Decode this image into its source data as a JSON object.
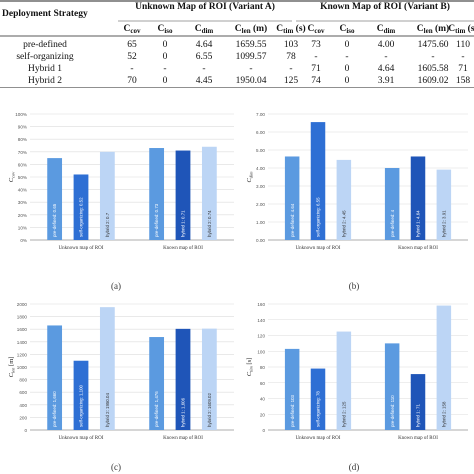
{
  "table": {
    "group_a": "Unknown Map of ROI (Variant A)",
    "group_b": "Known Map of ROI (Variant B)",
    "col0": "Deployment Strategy",
    "sub_headers": [
      "C",
      "C",
      "C",
      "C",
      "C",
      "C",
      "C",
      "C",
      "C",
      "C"
    ],
    "subscripts": [
      "cov",
      "iso",
      "dim",
      "len",
      "tim",
      "cov",
      "iso",
      "dim",
      "len",
      "tim"
    ],
    "units": [
      "",
      "",
      "",
      "(m)",
      "(s)",
      "",
      "",
      "",
      "(m)",
      "(s)"
    ],
    "rows": [
      [
        "pre-defined",
        "65",
        "0",
        "4.64",
        "1659.55",
        "103",
        "73",
        "0",
        "4.00",
        "1475.60",
        "110"
      ],
      [
        "self-organizing",
        "52",
        "0",
        "6.55",
        "1099.57",
        "78",
        "-",
        "-",
        "-",
        "-",
        "-"
      ],
      [
        "Hybrid 1",
        "-",
        "-",
        "-",
        "-",
        "-",
        "71",
        "0",
        "4.64",
        "1605.58",
        "71"
      ],
      [
        "Hybrid 2",
        "70",
        "0",
        "4.45",
        "1950.04",
        "125",
        "74",
        "0",
        "3.91",
        "1609.02",
        "158"
      ]
    ]
  },
  "panel_labels": [
    "(a)",
    "(b)",
    "(c)",
    "(d)"
  ],
  "chart_data": [
    {
      "type": "bar",
      "panel": "a",
      "ylabel": "C",
      "ylabel_sub": "cov",
      "ylim": [
        0,
        100
      ],
      "yticks": [
        "0%",
        "10%",
        "20%",
        "30%",
        "40%",
        "50%",
        "60%",
        "70%",
        "80%",
        "90%",
        "100%"
      ],
      "categories": [
        "Unknown map of ROI",
        "Known map of ROI"
      ],
      "bars": [
        {
          "group": 0,
          "label": "pre-defined: 0.65",
          "value": 65,
          "color": "#5b9ae0"
        },
        {
          "group": 0,
          "label": "self-organizing: 0.52",
          "value": 52,
          "color": "#2e6fd4"
        },
        {
          "group": 0,
          "label": "hybrid 2: 0.7",
          "value": 70,
          "color": "#bcd5f5"
        },
        {
          "group": 1,
          "label": "pre-defined: 0.73",
          "value": 73,
          "color": "#5b9ae0"
        },
        {
          "group": 1,
          "label": "hybrid 1: 0.71",
          "value": 71,
          "color": "#1f55b8"
        },
        {
          "group": 1,
          "label": "hybrid 2: 0.74",
          "value": 74,
          "color": "#bcd5f5"
        }
      ]
    },
    {
      "type": "bar",
      "panel": "b",
      "ylabel": "C",
      "ylabel_sub": "dim",
      "ylim": [
        0,
        7
      ],
      "yticks": [
        "0.00",
        "1.00",
        "2.00",
        "3.00",
        "4.00",
        "5.00",
        "6.00",
        "7.00"
      ],
      "categories": [
        "Unknown map of ROI",
        "Known map of ROI"
      ],
      "bars": [
        {
          "group": 0,
          "label": "pre-defined: 4.64",
          "value": 4.64,
          "color": "#5b9ae0"
        },
        {
          "group": 0,
          "label": "self-organizing: 6.55",
          "value": 6.55,
          "color": "#2e6fd4"
        },
        {
          "group": 0,
          "label": "hybrid 2: 4.45",
          "value": 4.45,
          "color": "#bcd5f5"
        },
        {
          "group": 1,
          "label": "pre-defined: 4",
          "value": 4.0,
          "color": "#5b9ae0"
        },
        {
          "group": 1,
          "label": "hybrid 1: 4.64",
          "value": 4.64,
          "color": "#1f55b8"
        },
        {
          "group": 1,
          "label": "hybrid 2: 3.91",
          "value": 3.91,
          "color": "#bcd5f5"
        }
      ]
    },
    {
      "type": "bar",
      "panel": "c",
      "ylabel": "C",
      "ylabel_sub": "len",
      "ylabel_suffix": " [m]",
      "ylim": [
        0,
        2000
      ],
      "yticks": [
        "0",
        "200",
        "400",
        "600",
        "800",
        "1000",
        "1200",
        "1400",
        "1600",
        "1800",
        "2000"
      ],
      "categories": [
        "Unknown map of ROI",
        "Known map of ROI"
      ],
      "bars": [
        {
          "group": 0,
          "label": "pre-defined: 1,660",
          "value": 1659.55,
          "color": "#5b9ae0"
        },
        {
          "group": 0,
          "label": "self-organizing: 1,100",
          "value": 1099.57,
          "color": "#2e6fd4"
        },
        {
          "group": 0,
          "label": "hybrid 2: 1950.04",
          "value": 1950.04,
          "color": "#bcd5f5"
        },
        {
          "group": 1,
          "label": "pre-defined: 1,476",
          "value": 1475.6,
          "color": "#5b9ae0"
        },
        {
          "group": 1,
          "label": "hybrid 1: 1,606",
          "value": 1605.58,
          "color": "#1f55b8"
        },
        {
          "group": 1,
          "label": "hybrid 2: 1609.02",
          "value": 1609.02,
          "color": "#bcd5f5"
        }
      ]
    },
    {
      "type": "bar",
      "panel": "d",
      "ylabel": "C",
      "ylabel_sub": "tim",
      "ylabel_suffix": " [s]",
      "ylim": [
        0,
        160
      ],
      "yticks": [
        "0",
        "20",
        "40",
        "60",
        "80",
        "100",
        "120",
        "140",
        "160"
      ],
      "categories": [
        "Unknown map of ROI",
        "Known map of ROI"
      ],
      "bars": [
        {
          "group": 0,
          "label": "pre-defined: 103",
          "value": 103,
          "color": "#5b9ae0"
        },
        {
          "group": 0,
          "label": "self-organizing: 78",
          "value": 78,
          "color": "#2e6fd4"
        },
        {
          "group": 0,
          "label": "hybrid 2: 125",
          "value": 125,
          "color": "#bcd5f5"
        },
        {
          "group": 1,
          "label": "pre-defined: 110",
          "value": 110,
          "color": "#5b9ae0"
        },
        {
          "group": 1,
          "label": "hybrid 1: 71",
          "value": 71,
          "color": "#1f55b8"
        },
        {
          "group": 1,
          "label": "hybrid 2: 158",
          "value": 158,
          "color": "#bcd5f5"
        }
      ]
    }
  ]
}
